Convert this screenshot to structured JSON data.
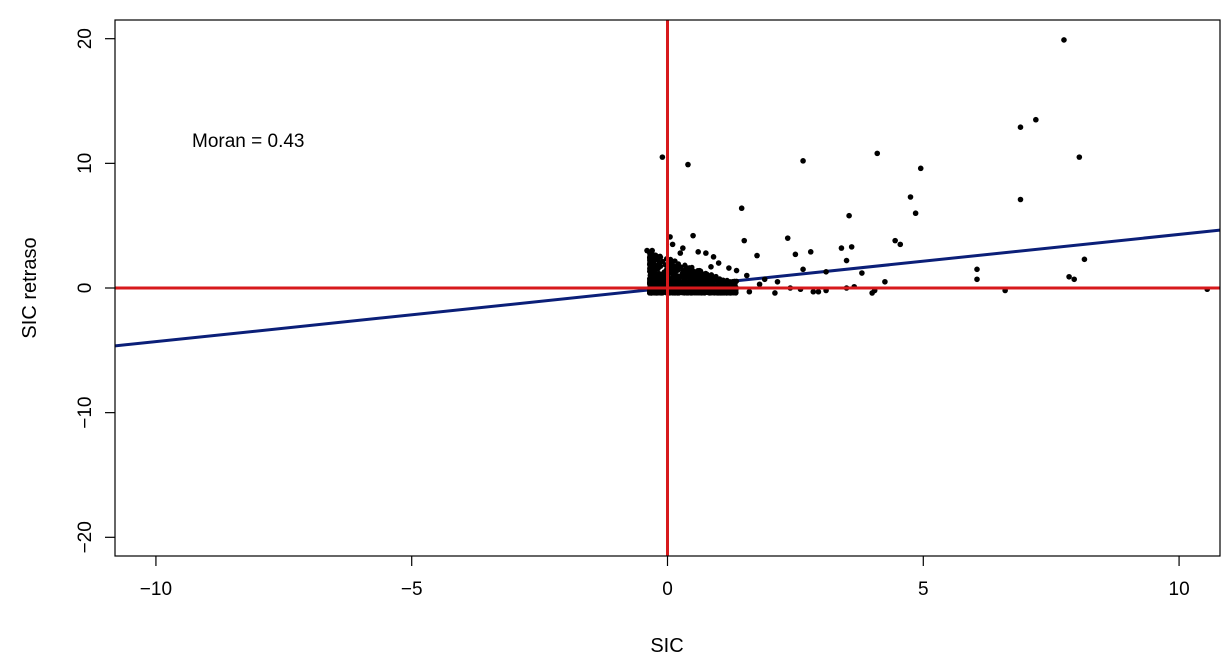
{
  "chart_data": {
    "type": "scatter",
    "title": "",
    "xlabel": "SIC",
    "ylabel": "SIC retraso",
    "xlim": [
      -10.8,
      10.8
    ],
    "ylim": [
      -21.5,
      21.5
    ],
    "xticks": [
      -10,
      -5,
      0,
      5,
      10
    ],
    "yticks": [
      -20,
      -10,
      0,
      10,
      20
    ],
    "xtick_labels": [
      "−10",
      "−5",
      "0",
      "5",
      "10"
    ],
    "ytick_labels": [
      "−20",
      "−10",
      "0",
      "10",
      "20"
    ],
    "grid": false,
    "legend": "none",
    "annotation": "Moran = 0.43",
    "reference_lines": {
      "x": 0,
      "y": 0,
      "color": "#d7191c"
    },
    "regression": {
      "slope": 0.43,
      "intercept": 0,
      "color": "#0b1f78"
    },
    "point_color": "#000000",
    "points": [
      [
        7.75,
        19.9
      ],
      [
        7.2,
        13.5
      ],
      [
        6.9,
        12.9
      ],
      [
        8.05,
        10.5
      ],
      [
        4.1,
        10.8
      ],
      [
        -0.1,
        10.5
      ],
      [
        0.4,
        9.9
      ],
      [
        2.65,
        10.2
      ],
      [
        4.95,
        9.6
      ],
      [
        4.75,
        7.3
      ],
      [
        4.85,
        6.0
      ],
      [
        6.9,
        7.1
      ],
      [
        1.45,
        6.4
      ],
      [
        3.55,
        5.8
      ],
      [
        2.35,
        4.0
      ],
      [
        1.5,
        3.8
      ],
      [
        4.45,
        3.8
      ],
      [
        4.55,
        3.5
      ],
      [
        3.4,
        3.2
      ],
      [
        3.6,
        3.3
      ],
      [
        2.8,
        2.9
      ],
      [
        2.5,
        2.7
      ],
      [
        3.5,
        2.2
      ],
      [
        8.15,
        2.3
      ],
      [
        6.05,
        1.5
      ],
      [
        6.05,
        0.7
      ],
      [
        3.8,
        1.2
      ],
      [
        3.1,
        1.3
      ],
      [
        2.65,
        1.5
      ],
      [
        1.75,
        2.6
      ],
      [
        1.9,
        0.7
      ],
      [
        2.15,
        0.5
      ],
      [
        4.25,
        0.5
      ],
      [
        7.85,
        0.9
      ],
      [
        7.95,
        0.7
      ],
      [
        3.65,
        0.1
      ],
      [
        4.0,
        -0.4
      ],
      [
        4.05,
        -0.2
      ],
      [
        3.5,
        0.0
      ],
      [
        6.6,
        -0.2
      ],
      [
        10.55,
        -0.1
      ],
      [
        2.95,
        -0.3
      ],
      [
        3.1,
        -0.2
      ],
      [
        2.85,
        -0.3
      ],
      [
        2.4,
        0.0
      ],
      [
        2.6,
        -0.1
      ],
      [
        2.1,
        -0.4
      ],
      [
        1.8,
        0.3
      ],
      [
        1.6,
        -0.3
      ],
      [
        1.35,
        1.4
      ],
      [
        1.55,
        1.0
      ],
      [
        -0.4,
        3.0
      ],
      [
        -0.3,
        3.0
      ],
      [
        -0.2,
        2.3
      ],
      [
        0.05,
        4.1
      ],
      [
        0.1,
        3.5
      ],
      [
        0.5,
        4.2
      ],
      [
        0.3,
        3.2
      ],
      [
        0.25,
        2.8
      ],
      [
        0.6,
        2.9
      ],
      [
        0.75,
        2.8
      ],
      [
        0.9,
        2.5
      ],
      [
        1.0,
        2.0
      ],
      [
        0.85,
        1.7
      ],
      [
        1.2,
        1.6
      ]
    ]
  }
}
